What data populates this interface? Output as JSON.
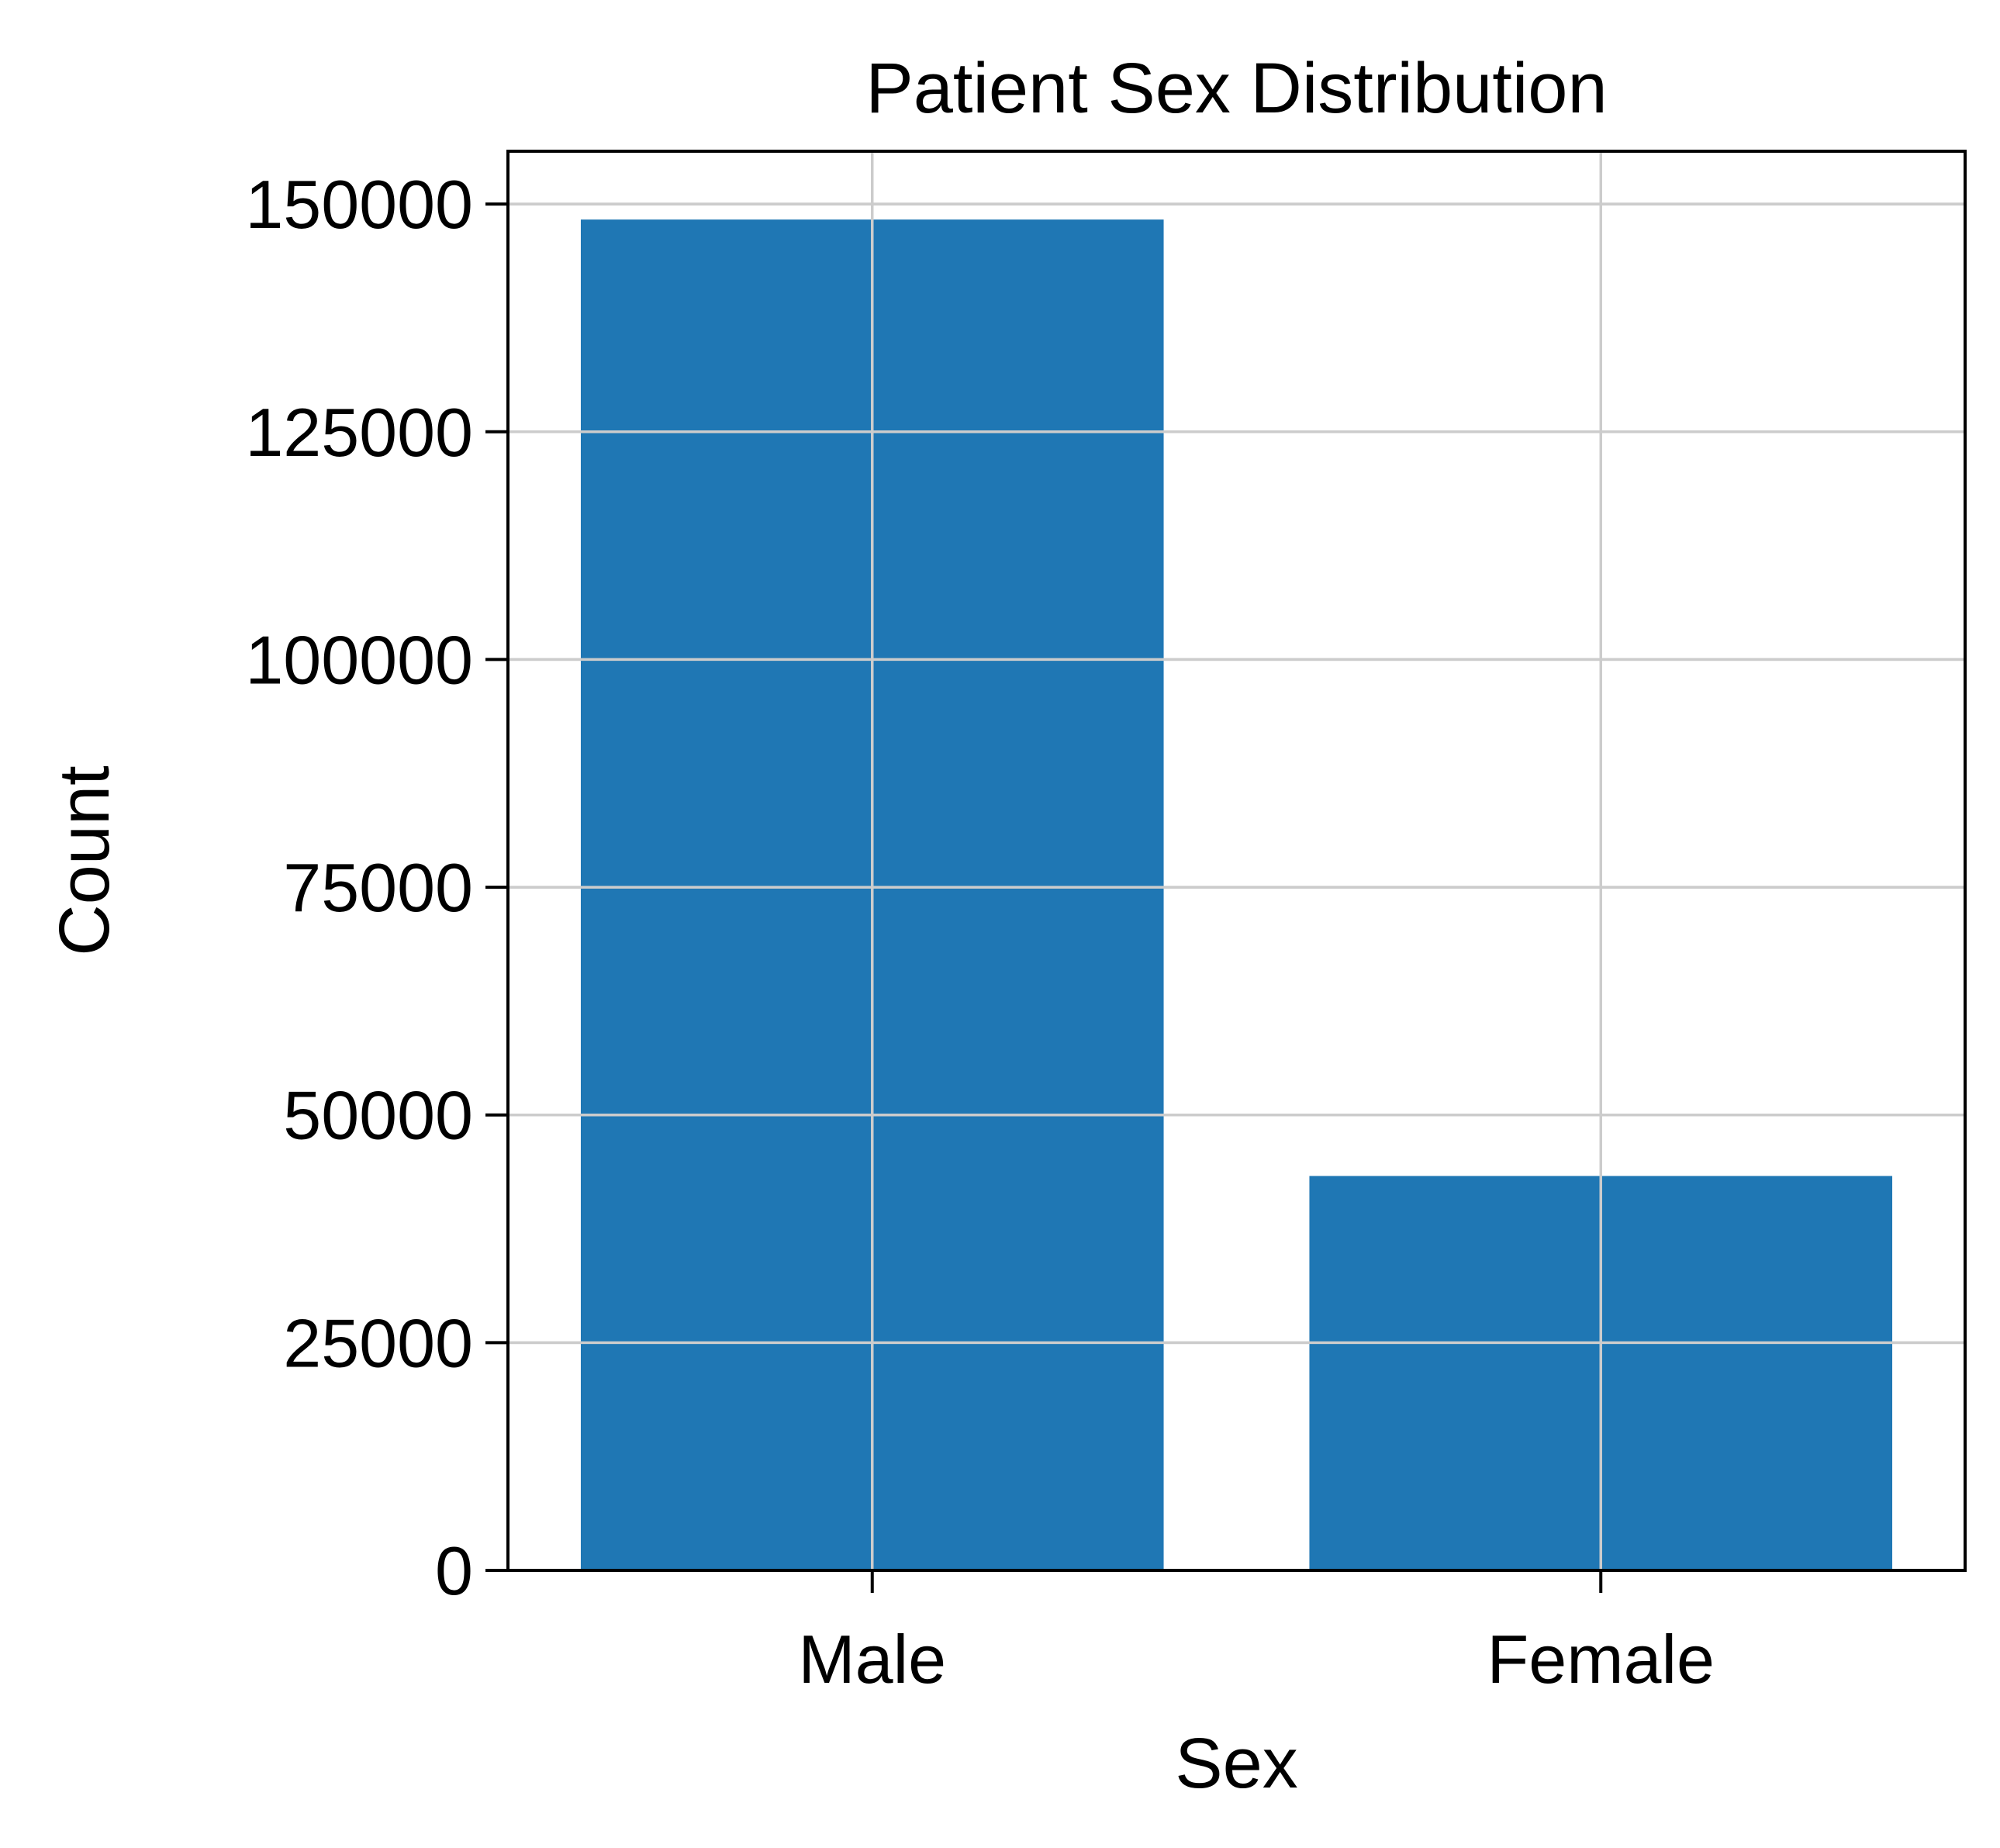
{
  "chart_data": {
    "type": "bar",
    "title": "Patient Sex Distribution",
    "xlabel": "Sex",
    "ylabel": "Count",
    "categories": [
      "Male",
      "Female"
    ],
    "values": [
      148300,
      43300
    ],
    "ylim": [
      0,
      155800
    ],
    "yticks": [
      0,
      25000,
      50000,
      75000,
      100000,
      125000,
      150000
    ],
    "ytick_labels": [
      "0",
      "25000",
      "50000",
      "75000",
      "100000",
      "125000",
      "150000"
    ],
    "grid": true,
    "bar_color": "#1f77b4",
    "grid_color": "#cccccc"
  }
}
